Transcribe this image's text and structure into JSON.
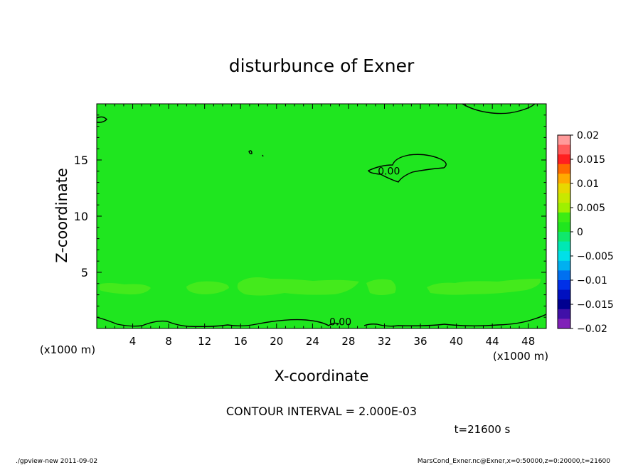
{
  "chart_data": {
    "type": "heatmap",
    "title": "disturbunce of Exner",
    "xlabel": "X-coordinate",
    "ylabel": "Z-coordinate",
    "x_unit_left": "(x1000 m)",
    "x_unit_right": "(x1000 m)",
    "xlim": [
      0,
      50
    ],
    "ylim": [
      0,
      20
    ],
    "x_ticks": [
      4,
      8,
      12,
      16,
      20,
      24,
      28,
      32,
      36,
      40,
      44,
      48
    ],
    "y_ticks": [
      5,
      10,
      15
    ],
    "field_color": "#1fe61f",
    "colorbar": {
      "levels": [
        0.02,
        0.015,
        0.01,
        0.005,
        0,
        -0.005,
        -0.01,
        -0.015,
        -0.02
      ],
      "labels": [
        "0.02",
        "0.015",
        "0.01",
        "0.005",
        "0",
        "−0.005",
        "−0.01",
        "−0.015",
        "−0.02"
      ],
      "colors": [
        "#ff9a9a",
        "#ff5a5a",
        "#ff2020",
        "#ff6a00",
        "#ffaa00",
        "#e8d800",
        "#c8e800",
        "#9ef000",
        "#3cec14",
        "#20e61e",
        "#10e86c",
        "#00e8b4",
        "#00e0e8",
        "#00b0f0",
        "#0070f0",
        "#0030e8",
        "#0010c0",
        "#000090",
        "#4010a8",
        "#8020b8"
      ]
    },
    "contour_labels": [
      {
        "text": "0.00",
        "x": 32.5,
        "y": 13.7
      },
      {
        "text": "0.00",
        "x": 27.1,
        "y": 0.3
      }
    ],
    "contour_interval": "CONTOUR INTERVAL = 2.000E-03",
    "time": "t=21600 s"
  },
  "footer": {
    "left": "./gpview-new   2011-09-02",
    "right": "MarsCond_Exner.nc@Exner,x=0:50000,z=0:20000,t=21600"
  }
}
